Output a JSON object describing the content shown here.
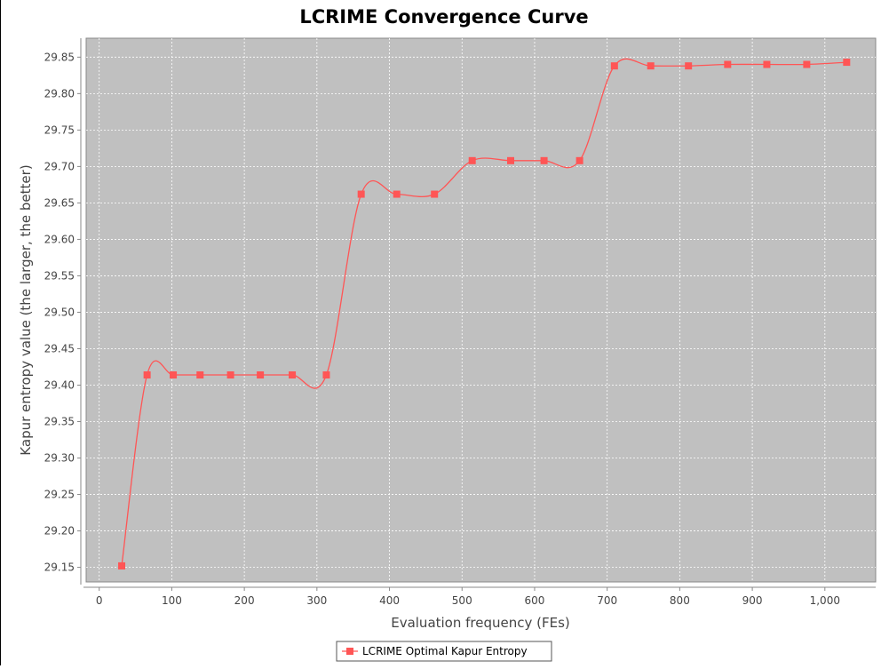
{
  "chart_data": {
    "type": "line",
    "title": "LCRIME Convergence Curve",
    "xlabel": "Evaluation frequency (FEs)",
    "ylabel": "Kapur entropy value (the larger, the better)",
    "xlim": [
      -18,
      1070
    ],
    "ylim": [
      29.13,
      29.876
    ],
    "x_ticks": [
      0,
      100,
      200,
      300,
      400,
      500,
      600,
      700,
      800,
      900,
      1000
    ],
    "x_tick_labels": [
      "0",
      "100",
      "200",
      "300",
      "400",
      "500",
      "600",
      "700",
      "800",
      "900",
      "1,000"
    ],
    "y_ticks": [
      29.15,
      29.2,
      29.25,
      29.3,
      29.35,
      29.4,
      29.45,
      29.5,
      29.55,
      29.6,
      29.65,
      29.7,
      29.75,
      29.8,
      29.85
    ],
    "y_tick_labels": [
      "29.15",
      "29.20",
      "29.25",
      "29.30",
      "29.35",
      "29.40",
      "29.45",
      "29.50",
      "29.55",
      "29.60",
      "29.65",
      "29.70",
      "29.75",
      "29.80",
      "29.85"
    ],
    "grid": true,
    "legend_position": "bottom-center",
    "series": [
      {
        "name": "LCRIME Optimal Kapur Entropy",
        "color": "#ff5555",
        "marker": "square",
        "x": [
          31,
          66,
          102,
          139,
          181,
          222,
          266,
          313,
          361,
          410,
          462,
          514,
          567,
          613,
          662,
          710,
          760,
          812,
          866,
          920,
          975,
          1030
        ],
        "y": [
          29.152,
          29.414,
          29.414,
          29.414,
          29.414,
          29.414,
          29.414,
          29.414,
          29.662,
          29.662,
          29.662,
          29.708,
          29.708,
          29.708,
          29.708,
          29.838,
          29.838,
          29.838,
          29.84,
          29.84,
          29.84,
          29.843
        ]
      }
    ]
  }
}
